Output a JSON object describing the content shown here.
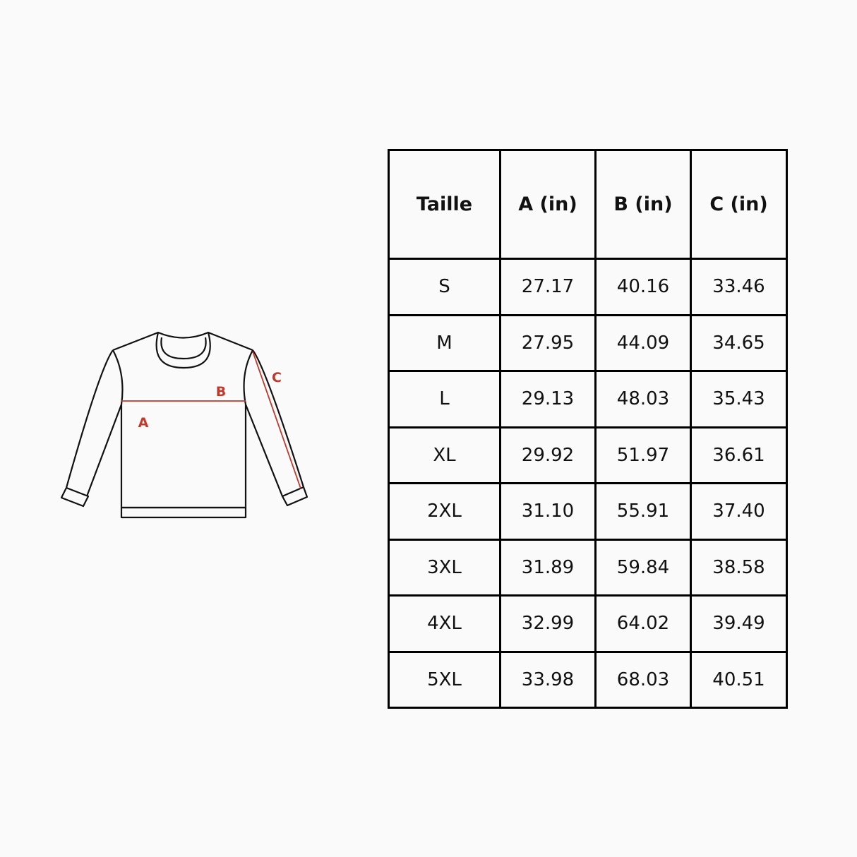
{
  "diagram": {
    "labels": {
      "a": "A",
      "b": "B",
      "c": "C"
    },
    "accent_color": "#c0392b",
    "line_color": "#111111"
  },
  "table": {
    "headers": [
      "Taille",
      "A (in)",
      "B (in)",
      "C (in)"
    ],
    "rows": [
      [
        "S",
        "27.17",
        "40.16",
        "33.46"
      ],
      [
        "M",
        "27.95",
        "44.09",
        "34.65"
      ],
      [
        "L",
        "29.13",
        "48.03",
        "35.43"
      ],
      [
        "XL",
        "29.92",
        "51.97",
        "36.61"
      ],
      [
        "2XL",
        "31.10",
        "55.91",
        "37.40"
      ],
      [
        "3XL",
        "31.89",
        "59.84",
        "38.58"
      ],
      [
        "4XL",
        "32.99",
        "64.02",
        "39.49"
      ],
      [
        "5XL",
        "33.98",
        "68.03",
        "40.51"
      ]
    ]
  }
}
